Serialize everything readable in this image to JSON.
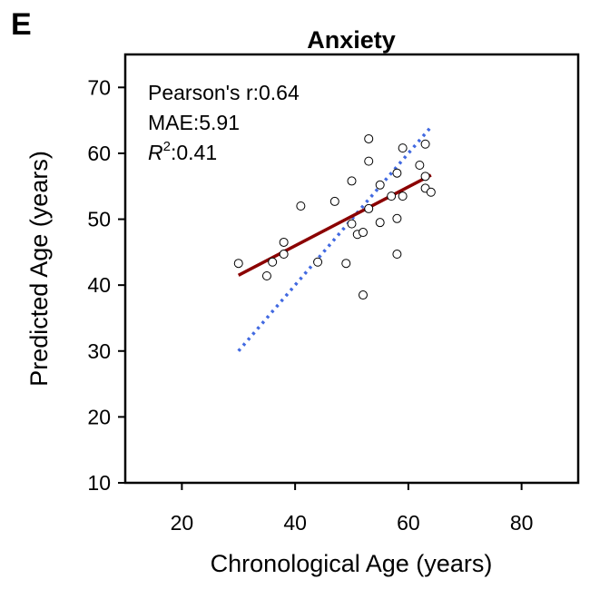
{
  "panel_label": "E",
  "chart_data": {
    "type": "scatter",
    "title": "Anxiety",
    "xlabel": "Chronological Age (years)",
    "ylabel": "Predicted Age (years)",
    "xlim": [
      10,
      90
    ],
    "ylim": [
      10,
      75
    ],
    "xticks": [
      20,
      40,
      60,
      80
    ],
    "yticks": [
      10,
      20,
      30,
      40,
      50,
      60,
      70
    ],
    "grid": false,
    "annotations": {
      "pearson": "Pearson's r:0.64",
      "mae": "MAE:5.91",
      "r2_symbol": "R",
      "r2_exp": "2",
      "r2_value": ":0.41"
    },
    "points": [
      {
        "x": 30,
        "y": 43.3
      },
      {
        "x": 35,
        "y": 41.4
      },
      {
        "x": 36,
        "y": 43.5
      },
      {
        "x": 38,
        "y": 46.5
      },
      {
        "x": 38,
        "y": 44.7
      },
      {
        "x": 41,
        "y": 52.0
      },
      {
        "x": 44,
        "y": 43.5
      },
      {
        "x": 47,
        "y": 52.7
      },
      {
        "x": 49,
        "y": 43.3
      },
      {
        "x": 50,
        "y": 55.8
      },
      {
        "x": 50,
        "y": 49.3
      },
      {
        "x": 51,
        "y": 47.7
      },
      {
        "x": 52,
        "y": 48.0
      },
      {
        "x": 52,
        "y": 38.5
      },
      {
        "x": 53,
        "y": 62.2
      },
      {
        "x": 53,
        "y": 58.8
      },
      {
        "x": 53,
        "y": 51.6
      },
      {
        "x": 55,
        "y": 55.2
      },
      {
        "x": 55,
        "y": 49.5
      },
      {
        "x": 57,
        "y": 53.5
      },
      {
        "x": 58,
        "y": 57.0
      },
      {
        "x": 58,
        "y": 50.1
      },
      {
        "x": 58,
        "y": 44.7
      },
      {
        "x": 59,
        "y": 60.8
      },
      {
        "x": 59,
        "y": 53.5
      },
      {
        "x": 62,
        "y": 58.2
      },
      {
        "x": 63,
        "y": 61.4
      },
      {
        "x": 63,
        "y": 56.5
      },
      {
        "x": 63,
        "y": 54.7
      },
      {
        "x": 64,
        "y": 54.1
      }
    ],
    "fit_line": {
      "color": "#8b0000",
      "x": [
        30,
        64
      ],
      "y": [
        41.5,
        56.7
      ]
    },
    "identity_line": {
      "color": "#4169e1",
      "style": "dotted",
      "x": [
        30,
        64
      ],
      "y": [
        30,
        64
      ]
    },
    "marker": {
      "fill": "#ffffff",
      "stroke": "#000000"
    }
  }
}
